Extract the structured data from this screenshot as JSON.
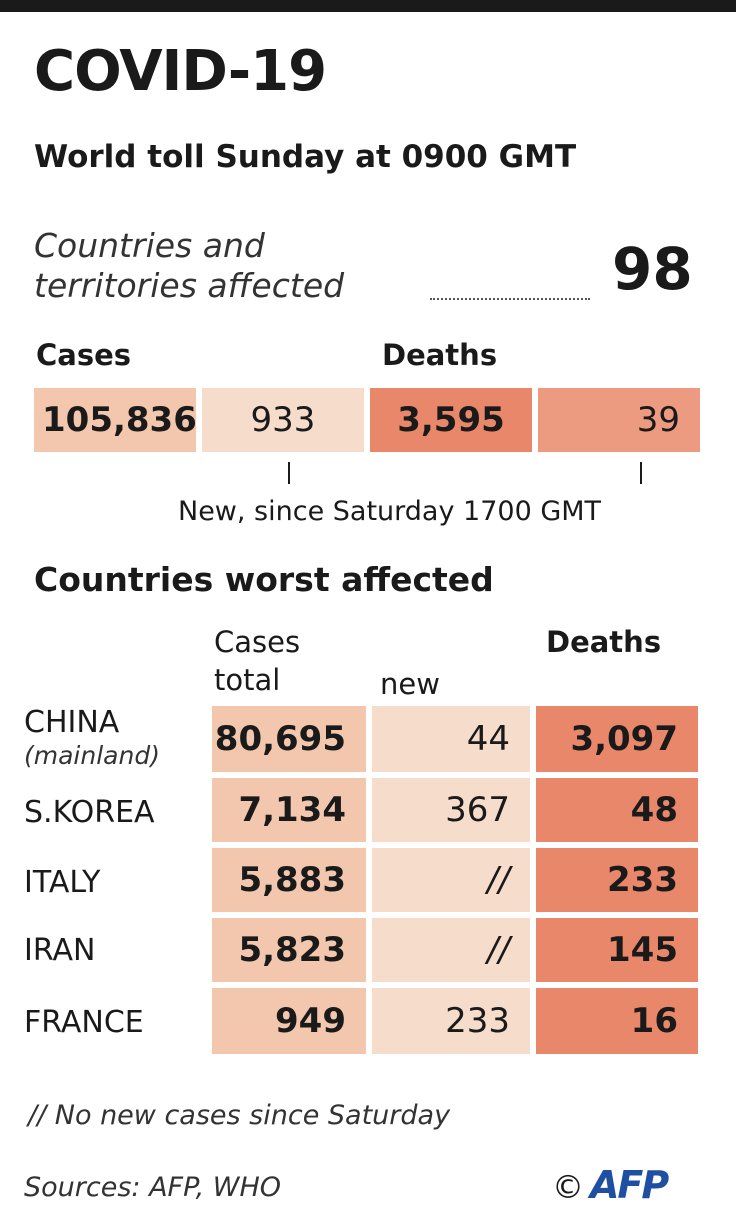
{
  "header": {
    "title": "COVID-19",
    "subtitle": "World toll Sunday at 0900 GMT"
  },
  "affected": {
    "label_line1": "Countries and",
    "label_line2": "territories affected",
    "value": "98"
  },
  "world": {
    "cases_label": "Cases",
    "deaths_label": "Deaths",
    "cases_total": "105,836",
    "cases_new": "933",
    "deaths_total": "3,595",
    "deaths_new": "39",
    "new_note": "New, since Saturday 1700 GMT"
  },
  "countries_section": {
    "title": "Countries worst affected",
    "col_cases": "Cases",
    "col_total": "total",
    "col_new": "new",
    "col_deaths": "Deaths"
  },
  "colors": {
    "cases_light": "#f6dccb",
    "cases_mid": "#f2c7ad",
    "deaths": "#e8876a",
    "deaths_light": "#ec9a80",
    "afp_blue": "#1f4fa3"
  },
  "chart_data": {
    "type": "table",
    "title": "COVID-19",
    "subtitle": "World toll Sunday at 0900 GMT",
    "countries_affected": 98,
    "world_totals": {
      "cases_total": 105836,
      "cases_new": 933,
      "deaths_total": 3595,
      "deaths_new": 39
    },
    "columns": [
      "Cases total",
      "new",
      "Deaths"
    ],
    "rows": [
      {
        "country": "CHINA",
        "note": "(mainland)",
        "cases_total": "80,695",
        "cases_new": "44",
        "deaths": "3,097"
      },
      {
        "country": "S.KOREA",
        "note": "",
        "cases_total": "7,134",
        "cases_new": "367",
        "deaths": "48"
      },
      {
        "country": "ITALY",
        "note": "",
        "cases_total": "5,883",
        "cases_new": "//",
        "deaths": "233"
      },
      {
        "country": "IRAN",
        "note": "",
        "cases_total": "5,823",
        "cases_new": "//",
        "deaths": "145"
      },
      {
        "country": "FRANCE",
        "note": "",
        "cases_total": "949",
        "cases_new": "233",
        "deaths": "16"
      }
    ]
  },
  "footer": {
    "footnote": "// No new cases since Saturday",
    "sources": "Sources: AFP, WHO",
    "copyright_symbol": "©",
    "logo_text": "AFP"
  }
}
